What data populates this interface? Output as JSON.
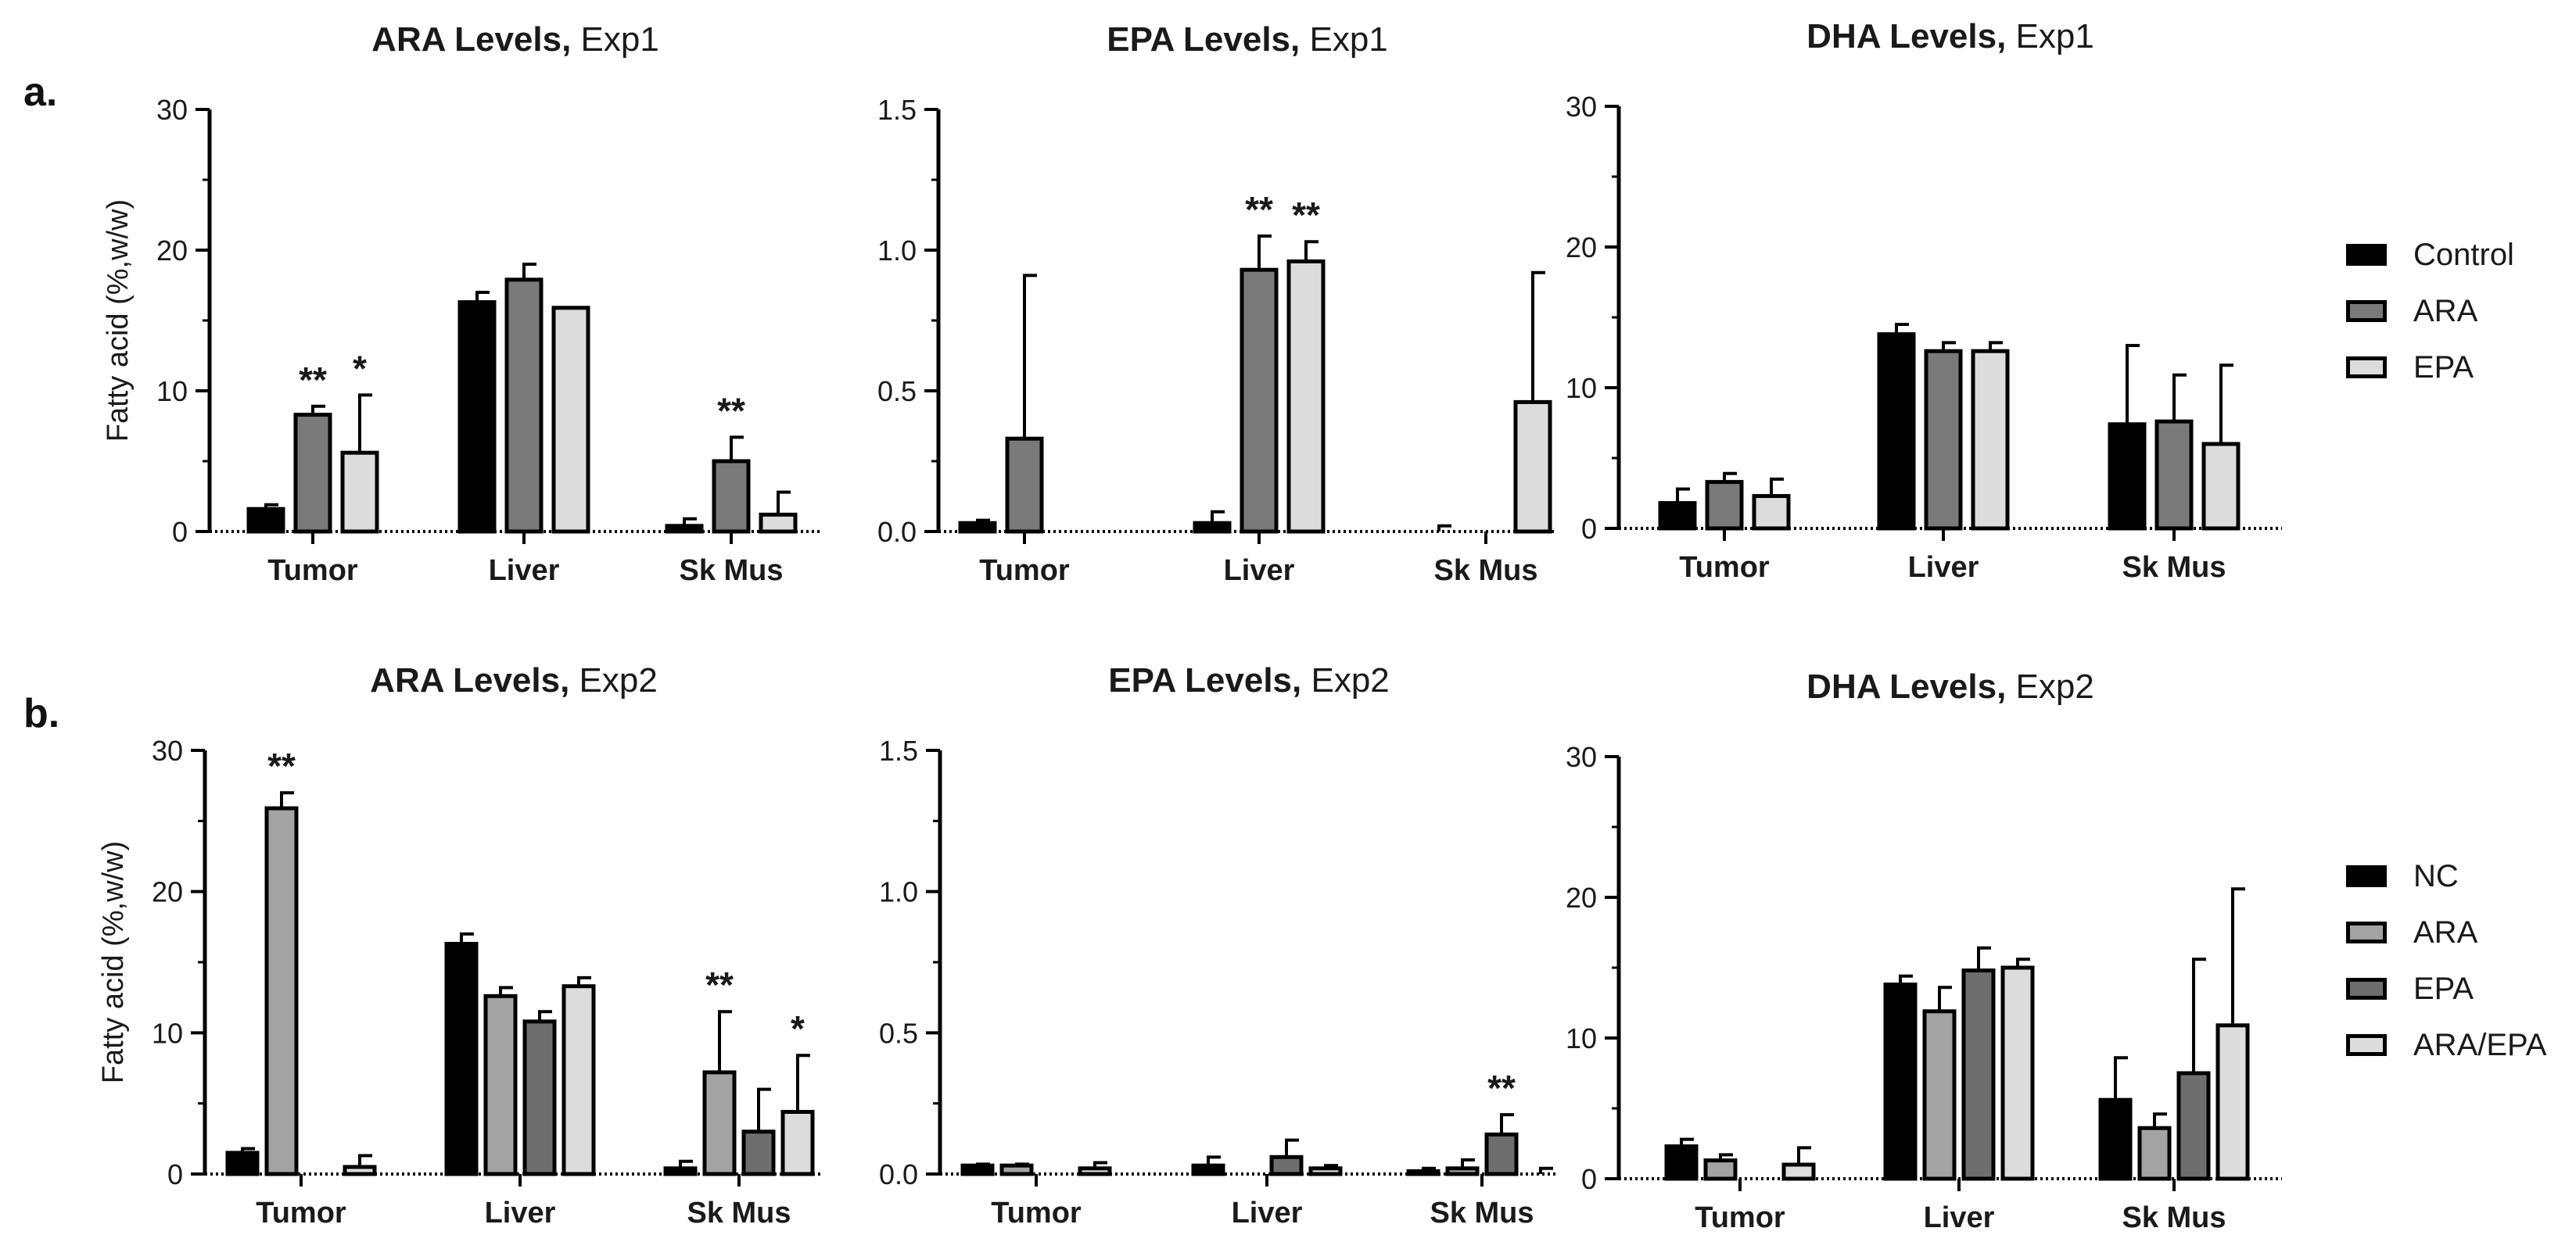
{
  "panel_labels": {
    "a": "a.",
    "b": "b."
  },
  "colors": {
    "Control": "#000000",
    "NC": "#000000",
    "ARA": "#7a7a7a",
    "ARA_b": "#a3a3a3",
    "EPA_b": "#6e6e6e",
    "EPA": "#dcdcdc",
    "ARA/EPA": "#dcdcdc"
  },
  "legend_a": [
    "Control",
    "ARA",
    "EPA"
  ],
  "legend_b": [
    "NC",
    "ARA",
    "EPA",
    "ARA/EPA"
  ],
  "chart_data": [
    {
      "type": "bar",
      "id": "ara-exp1",
      "row": "a",
      "title_bold": "ARA Levels,",
      "title_normal": "Exp1",
      "ylabel": "Fatty acid (%,w/w)",
      "ylim": [
        0,
        30
      ],
      "yticks": [
        "0",
        "10",
        "20",
        "30"
      ],
      "categories": [
        "Tumor",
        "Liver",
        "Sk Mus"
      ],
      "series": [
        {
          "name": "Control",
          "values": [
            1.6,
            16.3,
            0.4
          ],
          "errors": [
            0.3,
            0.7,
            0.5
          ],
          "stars": [
            "",
            "",
            ""
          ]
        },
        {
          "name": "ARA",
          "values": [
            8.3,
            17.9,
            5.0
          ],
          "errors": [
            0.6,
            1.1,
            1.7
          ],
          "stars": [
            "**",
            "",
            "**"
          ]
        },
        {
          "name": "EPA",
          "values": [
            5.6,
            15.9,
            1.2
          ],
          "errors": [
            4.1,
            0.0,
            1.6
          ],
          "stars": [
            "*",
            "",
            ""
          ]
        }
      ]
    },
    {
      "type": "bar",
      "id": "epa-exp1",
      "row": "a",
      "title_bold": "EPA Levels,",
      "title_normal": "Exp1",
      "ylabel": "",
      "ylim": [
        0,
        1.5
      ],
      "yticks": [
        "0.0",
        "0.5",
        "1.0",
        "1.5"
      ],
      "categories": [
        "Tumor",
        "Liver",
        "Sk Mus"
      ],
      "series": [
        {
          "name": "Control",
          "values": [
            0.03,
            0.03,
            0.0
          ],
          "errors": [
            0.01,
            0.04,
            0.02
          ],
          "stars": [
            "",
            "",
            ""
          ]
        },
        {
          "name": "ARA",
          "values": [
            0.33,
            0.93,
            0.0
          ],
          "errors": [
            0.58,
            0.12,
            0.0
          ],
          "stars": [
            "",
            "**",
            ""
          ]
        },
        {
          "name": "EPA",
          "values": [
            0.0,
            0.96,
            0.46
          ],
          "errors": [
            0.0,
            0.07,
            0.46
          ],
          "stars": [
            "",
            "**",
            ""
          ]
        }
      ]
    },
    {
      "type": "bar",
      "id": "dha-exp1",
      "row": "a",
      "title_bold": "DHA Levels,",
      "title_normal": "Exp1",
      "ylabel": "",
      "ylim": [
        0,
        30
      ],
      "yticks": [
        "0",
        "10",
        "20",
        "30"
      ],
      "categories": [
        "Tumor",
        "Liver",
        "Sk Mus"
      ],
      "series": [
        {
          "name": "Control",
          "values": [
            1.8,
            13.8,
            7.4
          ],
          "errors": [
            1.0,
            0.7,
            5.6
          ],
          "stars": [
            "",
            "",
            ""
          ]
        },
        {
          "name": "ARA",
          "values": [
            3.3,
            12.6,
            7.6
          ],
          "errors": [
            0.6,
            0.6,
            3.3
          ],
          "stars": [
            "",
            "",
            ""
          ]
        },
        {
          "name": "EPA",
          "values": [
            2.3,
            12.6,
            6.0
          ],
          "errors": [
            1.2,
            0.6,
            5.6
          ],
          "stars": [
            "",
            "",
            ""
          ]
        }
      ]
    },
    {
      "type": "bar",
      "id": "ara-exp2",
      "row": "b",
      "title_bold": "ARA Levels,",
      "title_normal": "Exp2",
      "ylabel": "Fatty acid (%,w/w)",
      "ylim": [
        0,
        30
      ],
      "yticks": [
        "0",
        "10",
        "20",
        "30"
      ],
      "categories": [
        "Tumor",
        "Liver",
        "Sk Mus"
      ],
      "series": [
        {
          "name": "NC",
          "values": [
            1.5,
            16.3,
            0.4
          ],
          "errors": [
            0.3,
            0.7,
            0.5
          ],
          "stars": [
            "",
            "",
            ""
          ]
        },
        {
          "name": "ARA",
          "values": [
            25.9,
            12.6,
            7.2
          ],
          "errors": [
            1.1,
            0.6,
            4.3
          ],
          "stars": [
            "**",
            "",
            "**"
          ]
        },
        {
          "name": "EPA",
          "values": [
            0.0,
            10.8,
            3.0
          ],
          "errors": [
            0.0,
            0.7,
            3.0
          ],
          "stars": [
            "",
            "",
            ""
          ]
        },
        {
          "name": "ARA/EPA",
          "values": [
            0.5,
            13.3,
            4.4
          ],
          "errors": [
            0.8,
            0.6,
            4.0
          ],
          "stars": [
            "",
            "",
            "*"
          ]
        }
      ]
    },
    {
      "type": "bar",
      "id": "epa-exp2",
      "row": "b",
      "title_bold": "EPA Levels,",
      "title_normal": "Exp2",
      "ylabel": "",
      "ylim": [
        0,
        1.5
      ],
      "yticks": [
        "0.0",
        "0.5",
        "1.0",
        "1.5"
      ],
      "categories": [
        "Tumor",
        "Liver",
        "Sk Mus"
      ],
      "series": [
        {
          "name": "NC",
          "values": [
            0.03,
            0.03,
            0.01
          ],
          "errors": [
            0.005,
            0.03,
            0.01
          ],
          "stars": [
            "",
            "",
            ""
          ]
        },
        {
          "name": "ARA",
          "values": [
            0.03,
            0.0,
            0.02
          ],
          "errors": [
            0.005,
            0.0,
            0.03
          ],
          "stars": [
            "",
            "",
            ""
          ]
        },
        {
          "name": "EPA",
          "values": [
            0.0,
            0.06,
            0.14
          ],
          "errors": [
            0.0,
            0.06,
            0.07
          ],
          "stars": [
            "",
            "",
            "**"
          ]
        },
        {
          "name": "ARA/EPA",
          "values": [
            0.02,
            0.02,
            0.0
          ],
          "errors": [
            0.02,
            0.01,
            0.02
          ],
          "stars": [
            "",
            "",
            ""
          ]
        }
      ]
    },
    {
      "type": "bar",
      "id": "dha-exp2",
      "row": "b",
      "title_bold": "DHA Levels,",
      "title_normal": "Exp2",
      "ylabel": "",
      "ylim": [
        0,
        30
      ],
      "yticks": [
        "0",
        "10",
        "20",
        "30"
      ],
      "categories": [
        "Tumor",
        "Liver",
        "Sk Mus"
      ],
      "series": [
        {
          "name": "NC",
          "values": [
            2.3,
            13.8,
            5.6
          ],
          "errors": [
            0.5,
            0.6,
            3.0
          ],
          "stars": [
            "",
            "",
            ""
          ]
        },
        {
          "name": "ARA",
          "values": [
            1.3,
            11.9,
            3.6
          ],
          "errors": [
            0.4,
            1.7,
            1.0
          ],
          "stars": [
            "",
            "",
            ""
          ]
        },
        {
          "name": "EPA",
          "values": [
            0.0,
            14.8,
            7.5
          ],
          "errors": [
            0.0,
            1.6,
            8.1
          ],
          "stars": [
            "",
            "",
            ""
          ]
        },
        {
          "name": "ARA/EPA",
          "values": [
            1.0,
            15.0,
            10.9
          ],
          "errors": [
            1.2,
            0.6,
            9.7
          ],
          "stars": [
            "",
            "",
            ""
          ]
        }
      ]
    }
  ]
}
